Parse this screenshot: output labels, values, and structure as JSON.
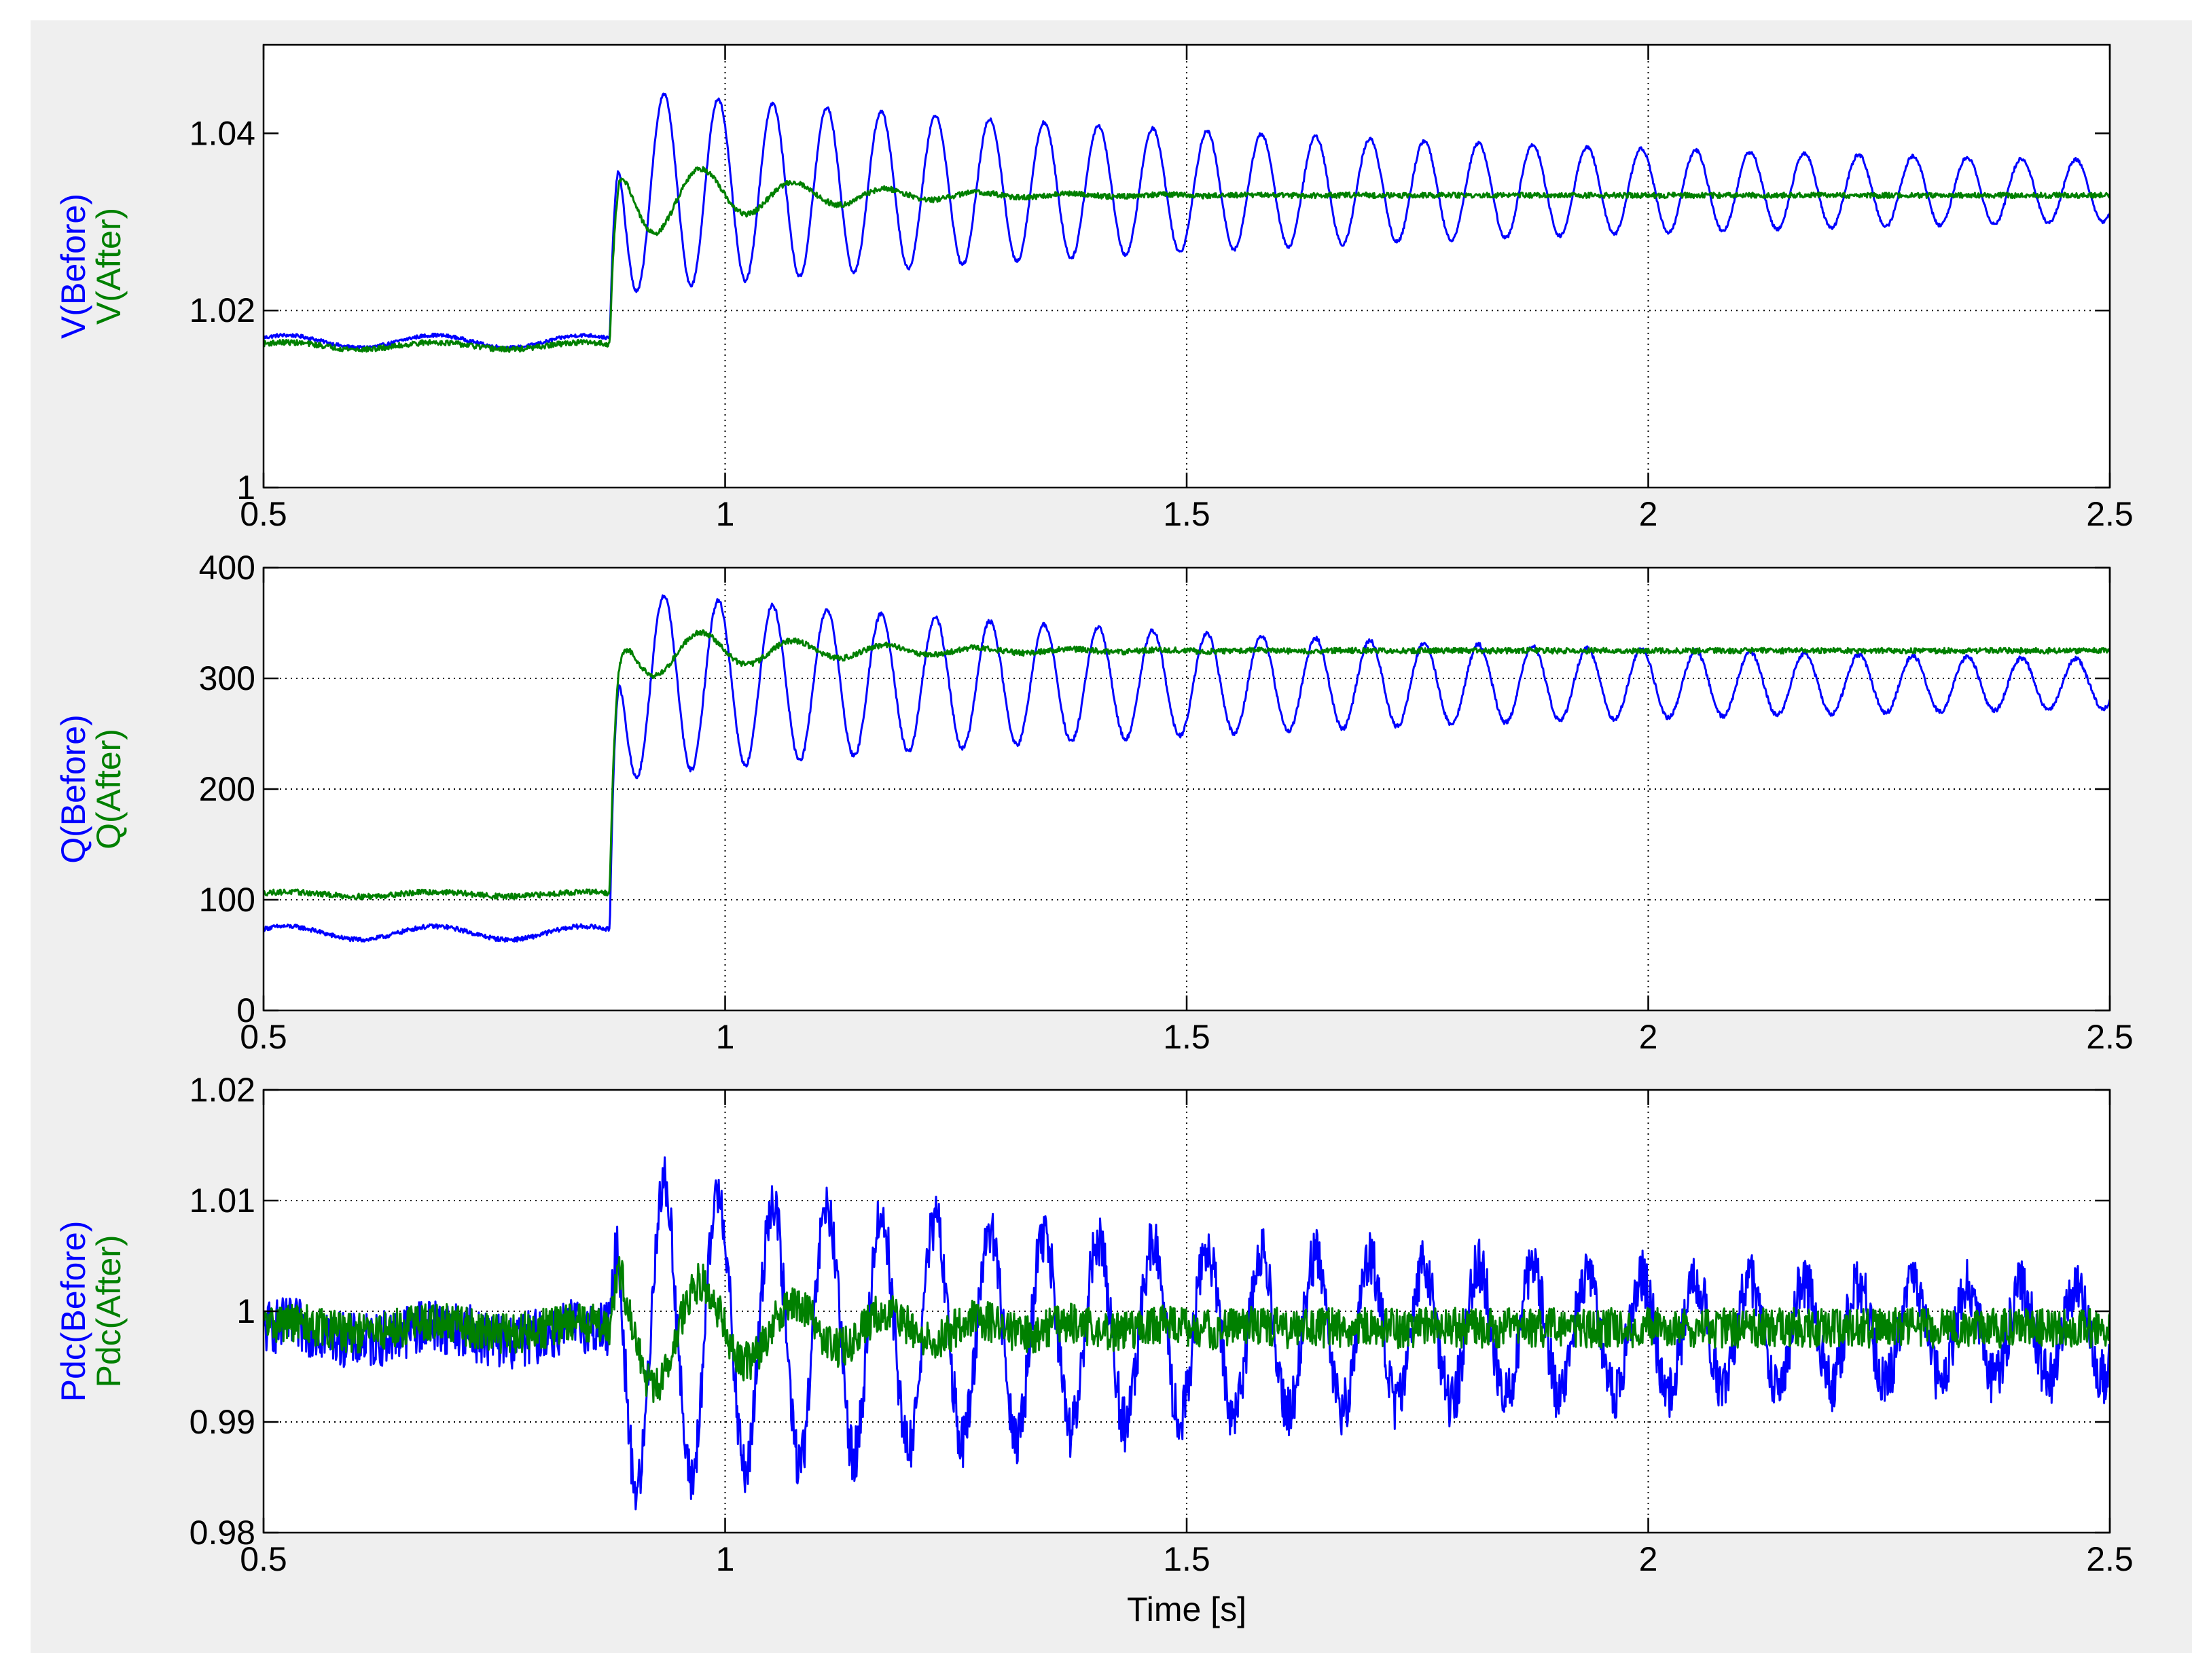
{
  "figure": {
    "background_color": "#efefef",
    "axes_color": "#ffffff"
  },
  "colors": {
    "before": "#0000ff",
    "after": "#008000",
    "grid": "#000000"
  },
  "chart_data": [
    {
      "type": "line",
      "xlabel": "",
      "ylabel_lines": [
        {
          "text": "V(Before)",
          "color": "#0000ff"
        },
        {
          "text": "V(After)",
          "color": "#008000"
        }
      ],
      "xlim": [
        0.5,
        2.5
      ],
      "ylim": [
        1.0,
        1.05
      ],
      "xticks": [
        0.5,
        1,
        1.5,
        2,
        2.5
      ],
      "xtick_labels": [
        "0.5",
        "1",
        "1.5",
        "2",
        "2.5"
      ],
      "yticks": [
        1.0,
        1.02,
        1.04
      ],
      "ytick_labels": [
        "1",
        "1.02",
        "1.04"
      ],
      "grid": true,
      "series": [
        {
          "key": "before",
          "color": "#0000ff",
          "pre_value": 1.0165,
          "pre_ripple": 0.0007,
          "step_time": 0.875,
          "final_value": 1.0335,
          "osc_amp_start": 0.0115,
          "osc_amp_end": 0.0015,
          "osc_decay": 1.0,
          "osc_freq": 17.0,
          "noise": 0.0002
        },
        {
          "key": "after",
          "color": "#008000",
          "pre_value": 1.016,
          "pre_ripple": 0.0004,
          "step_time": 0.875,
          "final_value": 1.033,
          "osc_amp_start": 0.006,
          "osc_amp_end": 0.0,
          "osc_decay": 7.0,
          "osc_freq": 10.0,
          "noise": 0.0003
        }
      ]
    },
    {
      "type": "line",
      "xlabel": "",
      "ylabel_lines": [
        {
          "text": "Q(Before)",
          "color": "#0000ff"
        },
        {
          "text": "Q(After)",
          "color": "#008000"
        }
      ],
      "xlim": [
        0.5,
        2.5
      ],
      "ylim": [
        0,
        400
      ],
      "xticks": [
        0.5,
        1,
        1.5,
        2,
        2.5
      ],
      "xtick_labels": [
        "0.5",
        "1",
        "1.5",
        "2",
        "2.5"
      ],
      "yticks": [
        0,
        100,
        200,
        300,
        400
      ],
      "ytick_labels": [
        "0",
        "100",
        "200",
        "300",
        "400"
      ],
      "grid": true,
      "series": [
        {
          "key": "before",
          "color": "#0000ff",
          "pre_value": 70,
          "pre_ripple": 6,
          "step_time": 0.875,
          "final_value": 295,
          "osc_amp_start": 85,
          "osc_amp_end": 12,
          "osc_decay": 1.2,
          "osc_freq": 17.0,
          "noise": 2
        },
        {
          "key": "after",
          "color": "#008000",
          "pre_value": 105,
          "pre_ripple": 2,
          "step_time": 0.875,
          "final_value": 325,
          "osc_amp_start": 30,
          "osc_amp_end": 0,
          "osc_decay": 6.0,
          "osc_freq": 10.0,
          "noise": 2.5
        }
      ]
    },
    {
      "type": "line",
      "xlabel": "Time [s]",
      "ylabel_lines": [
        {
          "text": "Pdc(Before)",
          "color": "#0000ff"
        },
        {
          "text": "Pdc(After)",
          "color": "#008000"
        }
      ],
      "xlim": [
        0.5,
        2.5
      ],
      "ylim": [
        0.98,
        1.02
      ],
      "xticks": [
        0.5,
        1,
        1.5,
        2,
        2.5
      ],
      "xtick_labels": [
        "0.5",
        "1",
        "1.5",
        "2",
        "2.5"
      ],
      "yticks": [
        0.98,
        0.99,
        1.0,
        1.01,
        1.02
      ],
      "ytick_labels": [
        "0.98",
        "0.99",
        "1",
        "1.01",
        "1.02"
      ],
      "grid": true,
      "series": [
        {
          "key": "before",
          "color": "#0000ff",
          "pre_value": 0.998,
          "pre_ripple": 0.0007,
          "step_time": 0.875,
          "final_value": 0.998,
          "osc_amp_start": 0.0145,
          "osc_amp_end": 0.0025,
          "osc_decay": 1.3,
          "osc_freq": 17.0,
          "noise": 0.0025
        },
        {
          "key": "after",
          "color": "#008000",
          "pre_value": 0.9985,
          "pre_ripple": 0.0005,
          "step_time": 0.875,
          "final_value": 0.9985,
          "osc_amp_start": 0.007,
          "osc_amp_end": 0.0,
          "osc_decay": 5.5,
          "osc_freq": 10.0,
          "noise": 0.0018
        }
      ]
    }
  ]
}
